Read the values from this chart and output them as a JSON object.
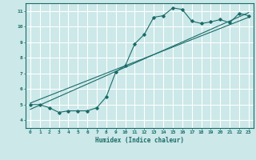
{
  "xlabel": "Humidex (Indice chaleur)",
  "bg_color": "#cce8e8",
  "grid_color": "#ffffff",
  "line_color": "#1a6b6b",
  "xlim": [
    -0.5,
    23.5
  ],
  "ylim": [
    3.5,
    11.5
  ],
  "xticks": [
    0,
    1,
    2,
    3,
    4,
    5,
    6,
    7,
    8,
    9,
    10,
    11,
    12,
    13,
    14,
    15,
    16,
    17,
    18,
    19,
    20,
    21,
    22,
    23
  ],
  "yticks": [
    4,
    5,
    6,
    7,
    8,
    9,
    10,
    11
  ],
  "scatter_x": [
    0,
    1,
    2,
    3,
    4,
    5,
    6,
    7,
    8,
    9,
    10,
    11,
    12,
    13,
    14,
    15,
    16,
    17,
    18,
    19,
    20,
    21,
    22,
    23
  ],
  "scatter_y": [
    5.0,
    5.0,
    4.8,
    4.5,
    4.6,
    4.6,
    4.6,
    4.8,
    5.5,
    7.1,
    7.5,
    8.9,
    9.5,
    10.6,
    10.7,
    11.2,
    11.1,
    10.35,
    10.2,
    10.3,
    10.45,
    10.25,
    10.85,
    10.7
  ],
  "trend1_x": [
    0,
    23
  ],
  "trend1_y": [
    4.7,
    10.9
  ],
  "trend2_x": [
    0,
    23
  ],
  "trend2_y": [
    5.1,
    10.6
  ]
}
